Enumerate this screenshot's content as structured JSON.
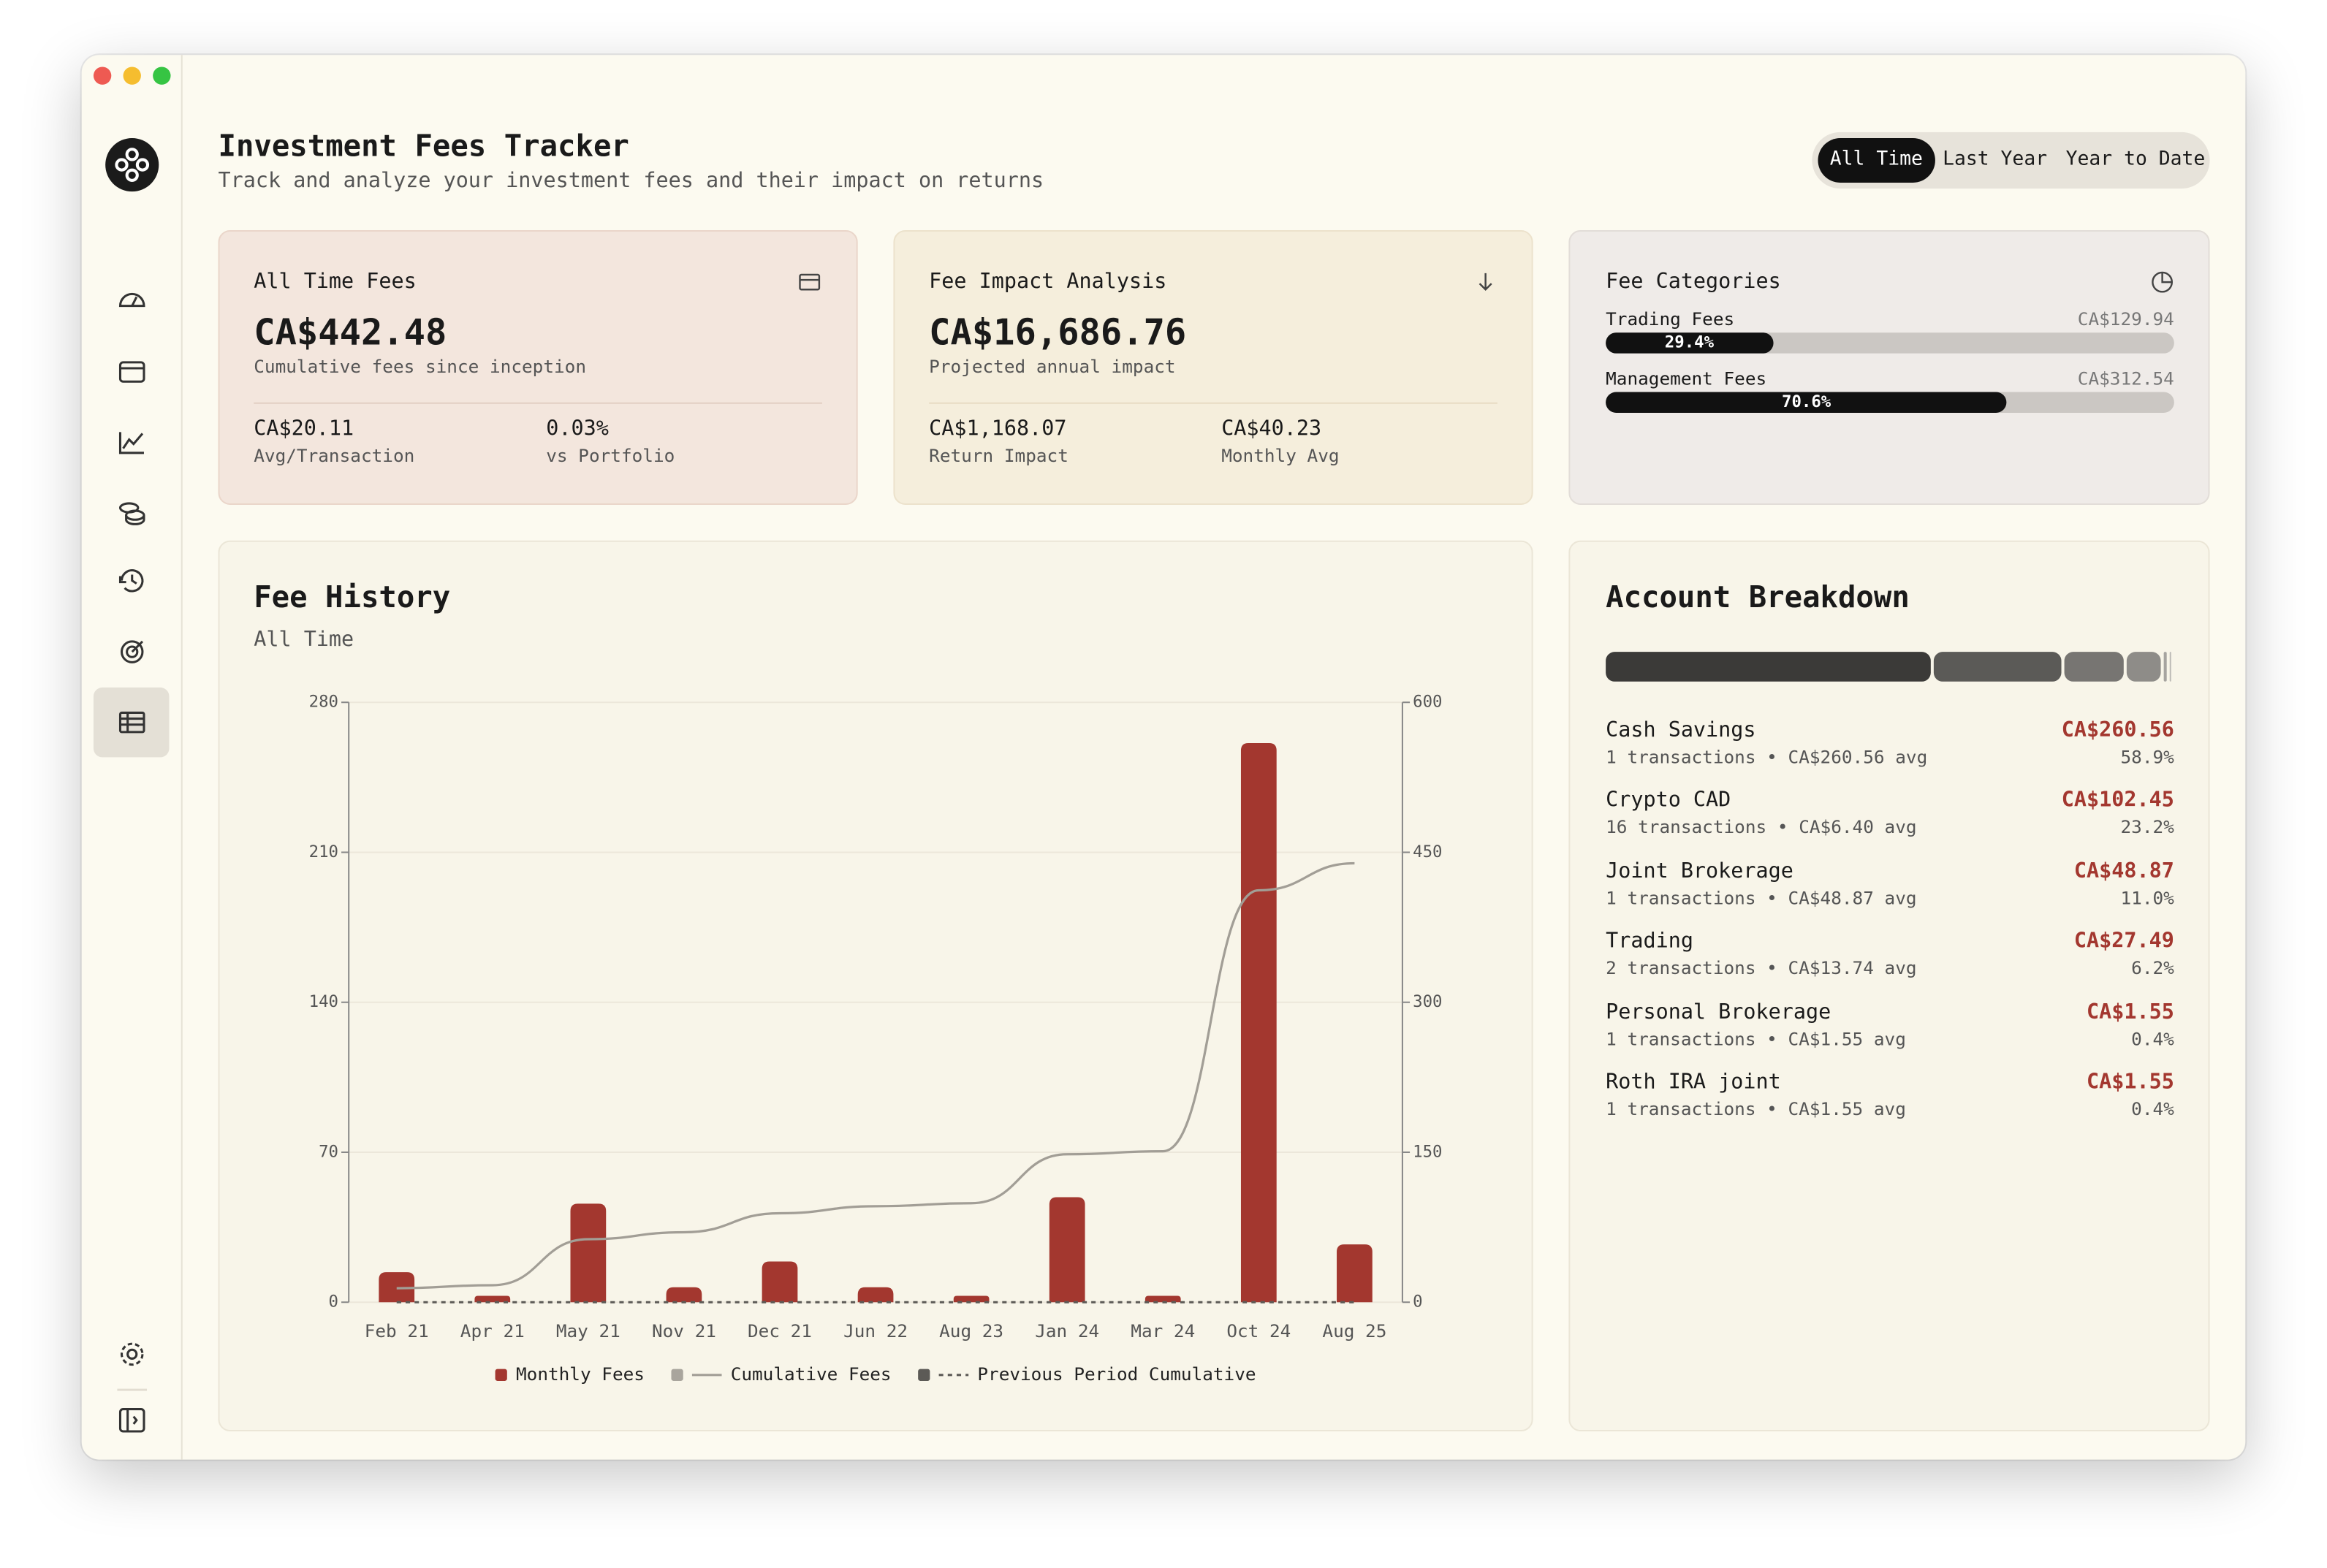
{
  "header": {
    "title": "Investment Fees Tracker",
    "subtitle": "Track and analyze your investment fees and their impact on returns"
  },
  "filters": [
    "All Time",
    "Last Year",
    "Year to Date"
  ],
  "summary_cards": [
    {
      "title": "All Time Fees",
      "value": "CA$442.48",
      "caption": "Cumulative fees since inception",
      "stats": [
        {
          "value": "CA$20.11",
          "label": "Avg/Transaction"
        },
        {
          "value": "0.03%",
          "label": "vs Portfolio"
        }
      ]
    },
    {
      "title": "Fee Impact Analysis",
      "value": "CA$16,686.76",
      "caption": "Projected annual impact",
      "stats": [
        {
          "value": "CA$1,168.07",
          "label": "Return Impact"
        },
        {
          "value": "CA$40.23",
          "label": "Monthly Avg"
        }
      ]
    }
  ],
  "fee_categories": {
    "title": "Fee Categories",
    "items": [
      {
        "name": "Trading Fees",
        "amount": "CA$129.94",
        "share": {
          "value": 29.4,
          "label": "29.4%"
        }
      },
      {
        "name": "Management Fees",
        "amount": "CA$312.54",
        "share": {
          "value": 70.6,
          "label": "70.6%"
        }
      }
    ]
  },
  "chart_data": {
    "type": "bar",
    "title": "Fee History",
    "subtitle": "All Time",
    "categories": [
      "Feb 21",
      "Apr 21",
      "May 21",
      "Nov 21",
      "Dec 21",
      "Jun 22",
      "Aug 23",
      "Jan 24",
      "Mar 24",
      "Oct 24",
      "Aug 25"
    ],
    "series": [
      {
        "name": "Monthly Fees",
        "type": "bar",
        "color": "#a3372f",
        "values": [
          14,
          3,
          46,
          7,
          19,
          7,
          3,
          49,
          3,
          261,
          27
        ]
      },
      {
        "name": "Cumulative Fees",
        "type": "line",
        "axis": "y2",
        "color": "#a29e96",
        "values": [
          14,
          17,
          63,
          70,
          89,
          96,
          99,
          148,
          151,
          412,
          439
        ]
      },
      {
        "name": "Previous Period Cumulative",
        "type": "line",
        "axis": "y2",
        "dashed": true,
        "color": "#5c5a56",
        "values": [
          0,
          0,
          0,
          0,
          0,
          0,
          0,
          0,
          0,
          0,
          0
        ]
      }
    ],
    "ylim": [
      0,
      280
    ],
    "yticks": [
      0,
      70,
      140,
      210,
      280
    ],
    "y2lim": [
      0,
      600
    ],
    "y2ticks": [
      0,
      150,
      300,
      450,
      600
    ],
    "grid": true,
    "legend": "bottom"
  },
  "account_breakdown": {
    "title": "Account Breakdown",
    "accounts": [
      {
        "name": "Cash Savings",
        "detail": "1 transactions • CA$260.56 avg",
        "amount": "CA$260.56",
        "share": {
          "value": 58.9,
          "label": "58.9%"
        },
        "color": "#3b3a38"
      },
      {
        "name": "Crypto CAD",
        "detail": "16 transactions • CA$6.40 avg",
        "amount": "CA$102.45",
        "share": {
          "value": 23.2,
          "label": "23.2%"
        },
        "color": "#5b5a57"
      },
      {
        "name": "Joint Brokerage",
        "detail": "1 transactions • CA$48.87 avg",
        "amount": "CA$48.87",
        "share": {
          "value": 11.0,
          "label": "11.0%"
        },
        "color": "#777572"
      },
      {
        "name": "Trading",
        "detail": "2 transactions • CA$13.74 avg",
        "amount": "CA$27.49",
        "share": {
          "value": 6.2,
          "label": "6.2%"
        },
        "color": "#8e8c88"
      },
      {
        "name": "Personal Brokerage",
        "detail": "1 transactions • CA$1.55 avg",
        "amount": "CA$1.55",
        "share": {
          "value": 0.4,
          "label": "0.4%"
        },
        "color": "#a6a4a0"
      },
      {
        "name": "Roth IRA joint",
        "detail": "1 transactions • CA$1.55 avg",
        "amount": "CA$1.55",
        "share": {
          "value": 0.4,
          "label": "0.4%"
        },
        "color": "#bdbbb7"
      }
    ]
  }
}
